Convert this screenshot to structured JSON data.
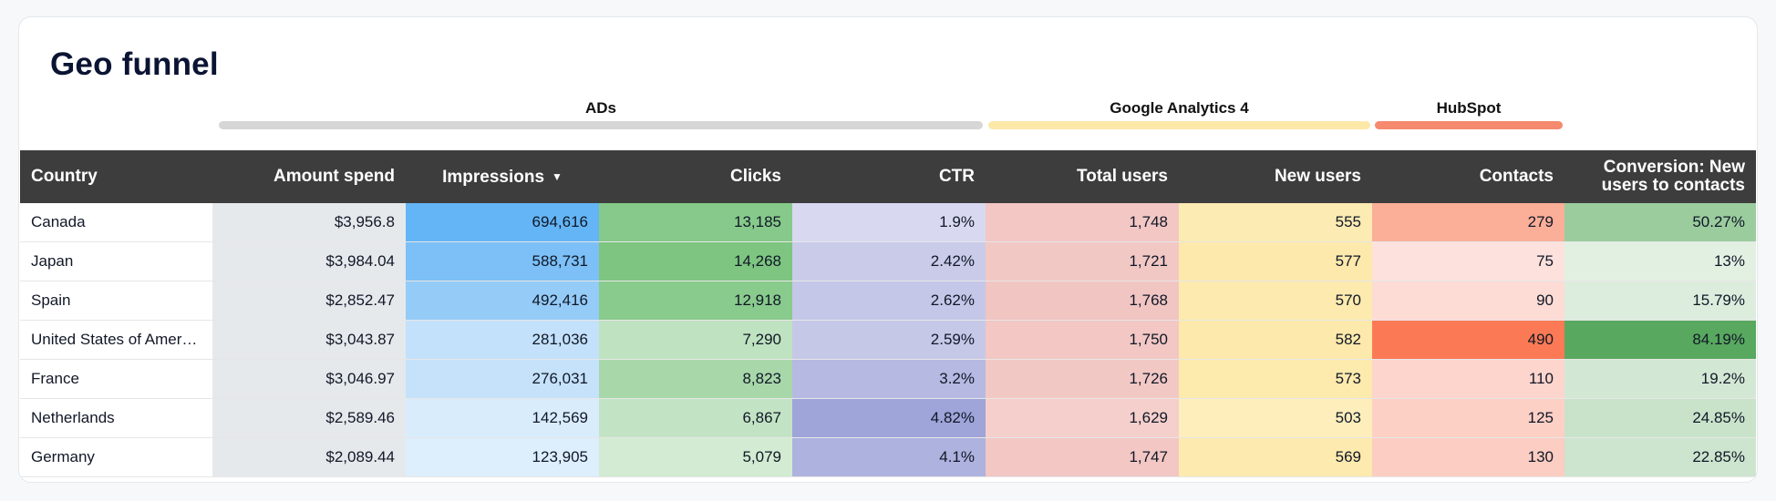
{
  "title": "Geo funnel",
  "groups": {
    "ads": {
      "label": "ADs",
      "color": "#d6d6d6"
    },
    "ga4": {
      "label": "Google Analytics 4",
      "color": "#fde8a8"
    },
    "hubspot": {
      "label": "HubSpot",
      "color": "#f58a6e"
    }
  },
  "columns": [
    {
      "label": "Country"
    },
    {
      "label": "Amount spend"
    },
    {
      "label": "Impressions"
    },
    {
      "label": "Clicks"
    },
    {
      "label": "CTR"
    },
    {
      "label": "Total users"
    },
    {
      "label": "New users"
    },
    {
      "label": "Contacts"
    },
    {
      "label": "Conversion: New users to contacts"
    }
  ],
  "rows": [
    {
      "country": "Canada",
      "spend": "$3,956.8",
      "impressions": "694,616",
      "clicks": "13,185",
      "ctr": "1.9%",
      "total_users": "1,748",
      "new_users": "555",
      "contacts": "279",
      "conversion": "50.27%"
    },
    {
      "country": "Japan",
      "spend": "$3,984.04",
      "impressions": "588,731",
      "clicks": "14,268",
      "ctr": "2.42%",
      "total_users": "1,721",
      "new_users": "577",
      "contacts": "75",
      "conversion": "13%"
    },
    {
      "country": "Spain",
      "spend": "$2,852.47",
      "impressions": "492,416",
      "clicks": "12,918",
      "ctr": "2.62%",
      "total_users": "1,768",
      "new_users": "570",
      "contacts": "90",
      "conversion": "15.79%"
    },
    {
      "country": "United States of Amer…",
      "spend": "$3,043.87",
      "impressions": "281,036",
      "clicks": "7,290",
      "ctr": "2.59%",
      "total_users": "1,750",
      "new_users": "582",
      "contacts": "490",
      "conversion": "84.19%"
    },
    {
      "country": "France",
      "spend": "$3,046.97",
      "impressions": "276,031",
      "clicks": "8,823",
      "ctr": "3.2%",
      "total_users": "1,726",
      "new_users": "573",
      "contacts": "110",
      "conversion": "19.2%"
    },
    {
      "country": "Netherlands",
      "spend": "$2,589.46",
      "impressions": "142,569",
      "clicks": "6,867",
      "ctr": "4.82%",
      "total_users": "1,629",
      "new_users": "503",
      "contacts": "125",
      "conversion": "24.85%"
    },
    {
      "country": "Germany",
      "spend": "$2,089.44",
      "impressions": "123,905",
      "clicks": "5,079",
      "ctr": "4.1%",
      "total_users": "1,747",
      "new_users": "569",
      "contacts": "130",
      "conversion": "22.85%"
    }
  ],
  "cell_colors": {
    "impressions": [
      "#64b5f6",
      "#7cc0f7",
      "#94cbf7",
      "#c3e1fa",
      "#c5e2fa",
      "#d9ecfc",
      "#ddeefc"
    ],
    "clicks": [
      "#86c98a",
      "#7dc581",
      "#89ca8d",
      "#bfe2c0",
      "#a8d8aa",
      "#c3e4c4",
      "#d2ebd2"
    ],
    "ctr": [
      "#d8d9f0",
      "#cacbe9",
      "#c5c7e8",
      "#c6c8e8",
      "#b6b9e2",
      "#9fa4d9",
      "#aeb2de"
    ],
    "total_users": [
      "#f2c7c4",
      "#f2c8c5",
      "#f1c5c2",
      "#f2c7c4",
      "#f2c8c5",
      "#f4cfcc",
      "#f2c7c4"
    ],
    "new_users": [
      "#fcebb2",
      "#fde9ac",
      "#fdeaae",
      "#fde9ab",
      "#fdeaad",
      "#fdeebc",
      "#fdeaae"
    ],
    "contacts": [
      "#fbae98",
      "#fde1dc",
      "#fddcd5",
      "#fb7a55",
      "#fdd5cc",
      "#fcd0c5",
      "#fccdc2"
    ],
    "conversion": [
      "#9bcc9e",
      "#e2f0e2",
      "#dcedde",
      "#58a85f",
      "#d3e8d4",
      "#c9e3ca",
      "#cde5ce"
    ]
  }
}
